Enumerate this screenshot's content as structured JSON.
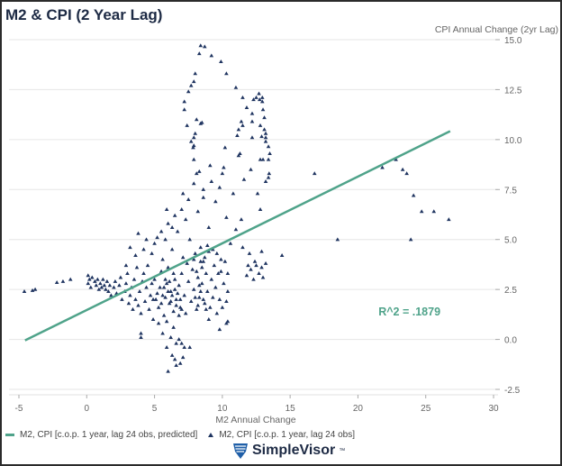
{
  "header": {
    "title": "M2 & CPI (2 Year Lag)"
  },
  "brand": {
    "name": "SimpleVisor",
    "tm": "™"
  },
  "colors": {
    "points": "#1f3460",
    "regression": "#4fa38a",
    "grid": "#e6e6e6"
  },
  "chart_data": {
    "type": "scatter",
    "title": "M2 & CPI (2 Year Lag)",
    "xlabel": "M2 Annual Change",
    "ylabel": "CPI Annual Change (2yr Lag)",
    "xlim": [
      -5,
      30
    ],
    "ylim": [
      -2.5,
      15
    ],
    "xticks": [
      "-5",
      "0",
      "5",
      "10",
      "15",
      "20",
      "25",
      "30"
    ],
    "yticks": [
      "-2.5",
      "0.0",
      "2.5",
      "5.0",
      "7.5",
      "10.0",
      "12.5",
      "15.0"
    ],
    "grid": "horizontal",
    "legend_position": "bottom-left",
    "annotation": "R^2 = .1879",
    "annotation_at": [
      23.8,
      1.2
    ],
    "series": [
      {
        "name": "M2, CPI [c.o.p. 1 year, lag 24 obs, predicted]",
        "type": "line",
        "points": [
          [
            -4.55,
            -0.05
          ],
          [
            26.8,
            10.42
          ]
        ]
      },
      {
        "name": "M2, CPI [c.o.p. 1 year, lag 24 obs]",
        "type": "scatter",
        "points": [
          [
            8.4,
            14.7
          ],
          [
            8.7,
            14.65
          ],
          [
            8.3,
            14.3
          ],
          [
            9.2,
            14.2
          ],
          [
            9.9,
            13.9
          ],
          [
            10.3,
            13.3
          ],
          [
            11.0,
            12.6
          ],
          [
            11.5,
            12.1
          ],
          [
            8.0,
            13.3
          ],
          [
            7.9,
            12.9
          ],
          [
            7.7,
            12.7
          ],
          [
            7.5,
            12.4
          ],
          [
            7.2,
            11.9
          ],
          [
            7.2,
            11.5
          ],
          [
            12.7,
            12.3
          ],
          [
            12.95,
            12.1
          ],
          [
            12.3,
            12.0
          ],
          [
            12.5,
            12.1
          ],
          [
            12.75,
            12.0
          ],
          [
            12.95,
            11.9
          ],
          [
            11.8,
            11.6
          ],
          [
            13.0,
            11.5
          ],
          [
            12.2,
            11.3
          ],
          [
            13.1,
            11.1
          ],
          [
            11.4,
            10.9
          ],
          [
            12.2,
            10.9
          ],
          [
            11.5,
            10.7
          ],
          [
            12.8,
            10.7
          ],
          [
            13.1,
            10.5
          ],
          [
            11.2,
            10.5
          ],
          [
            13.2,
            10.3
          ],
          [
            12.9,
            10.15
          ],
          [
            12.2,
            10.1
          ],
          [
            11.1,
            10.2
          ],
          [
            13.2,
            10.1
          ],
          [
            13.2,
            9.9
          ],
          [
            13.4,
            9.65
          ],
          [
            13.5,
            9.3
          ],
          [
            13.4,
            9.0
          ],
          [
            13.0,
            9.0
          ],
          [
            12.8,
            9.0
          ],
          [
            13.45,
            8.3
          ],
          [
            13.4,
            8.1
          ],
          [
            12.1,
            8.5
          ],
          [
            11.3,
            9.3
          ],
          [
            11.2,
            9.2
          ],
          [
            10.1,
            8.6
          ],
          [
            9.1,
            8.7
          ],
          [
            10.2,
            9.6
          ],
          [
            8.1,
            11.0
          ],
          [
            8.4,
            10.8
          ],
          [
            8.5,
            10.85
          ],
          [
            7.4,
            10.7
          ],
          [
            8.0,
            10.3
          ],
          [
            7.9,
            10.1
          ],
          [
            7.7,
            9.9
          ],
          [
            7.9,
            9.7
          ],
          [
            7.85,
            9.6
          ],
          [
            7.9,
            9.0
          ],
          [
            8.1,
            8.3
          ],
          [
            16.8,
            8.3
          ],
          [
            18.5,
            5.0
          ],
          [
            21.8,
            8.6
          ],
          [
            22.8,
            9.0
          ],
          [
            23.3,
            8.5
          ],
          [
            23.6,
            8.3
          ],
          [
            24.1,
            7.2
          ],
          [
            24.7,
            6.4
          ],
          [
            25.6,
            6.4
          ],
          [
            23.9,
            5.0
          ],
          [
            26.7,
            6.0
          ],
          [
            14.4,
            4.2
          ],
          [
            -4.6,
            2.4
          ],
          [
            -4.0,
            2.45
          ],
          [
            -3.8,
            2.5
          ],
          [
            -2.2,
            2.85
          ],
          [
            -1.75,
            2.9
          ],
          [
            -1.2,
            3.0
          ],
          [
            0.1,
            3.2
          ],
          [
            0.2,
            3.0
          ],
          [
            0.1,
            2.8
          ],
          [
            0.3,
            2.6
          ],
          [
            0.4,
            3.1
          ],
          [
            0.6,
            2.9
          ],
          [
            0.7,
            2.7
          ],
          [
            0.8,
            3.0
          ],
          [
            0.9,
            2.5
          ],
          [
            1.0,
            2.8
          ],
          [
            1.1,
            2.6
          ],
          [
            1.2,
            3.0
          ],
          [
            1.3,
            2.7
          ],
          [
            1.4,
            2.5
          ],
          [
            1.5,
            2.9
          ],
          [
            1.6,
            2.4
          ],
          [
            1.7,
            2.7
          ],
          [
            1.8,
            2.2
          ],
          [
            2.0,
            2.6
          ],
          [
            2.1,
            2.9
          ],
          [
            2.2,
            2.3
          ],
          [
            2.4,
            2.7
          ],
          [
            2.5,
            3.1
          ],
          [
            2.6,
            2.0
          ],
          [
            2.8,
            2.4
          ],
          [
            2.9,
            2.8
          ],
          [
            3.0,
            3.3
          ],
          [
            3.1,
            1.8
          ],
          [
            3.2,
            2.2
          ],
          [
            3.3,
            2.6
          ],
          [
            3.4,
            1.5
          ],
          [
            3.5,
            3.0
          ],
          [
            3.6,
            2.0
          ],
          [
            3.7,
            3.6
          ],
          [
            3.8,
            1.7
          ],
          [
            3.9,
            2.4
          ],
          [
            4.0,
            1.3
          ],
          [
            4.1,
            2.9
          ],
          [
            4.2,
            3.3
          ],
          [
            4.3,
            1.9
          ],
          [
            4.4,
            2.6
          ],
          [
            4.5,
            3.7
          ],
          [
            4.6,
            1.5
          ],
          [
            4.7,
            2.2
          ],
          [
            4.8,
            4.3
          ],
          [
            4.9,
            1.0
          ],
          [
            5.0,
            3.0
          ],
          [
            5.1,
            2.0
          ],
          [
            5.2,
            5.1
          ],
          [
            5.3,
            1.6
          ],
          [
            5.4,
            2.6
          ],
          [
            5.5,
            3.4
          ],
          [
            5.6,
            4.0
          ],
          [
            5.7,
            1.2
          ],
          [
            5.8,
            2.1
          ],
          [
            5.9,
            2.8
          ],
          [
            6.0,
            3.6
          ],
          [
            6.1,
            1.8
          ],
          [
            6.2,
            2.4
          ],
          [
            6.3,
            4.5
          ],
          [
            6.4,
            1.4
          ],
          [
            6.5,
            3.0
          ],
          [
            6.6,
            2.0
          ],
          [
            6.7,
            5.4
          ],
          [
            6.8,
            2.7
          ],
          [
            6.9,
            1.6
          ],
          [
            7.0,
            3.3
          ],
          [
            7.1,
            4.1
          ],
          [
            7.2,
            2.2
          ],
          [
            7.3,
            1.3
          ],
          [
            7.4,
            3.8
          ],
          [
            7.5,
            2.9
          ],
          [
            7.6,
            5.0
          ],
          [
            7.7,
            1.9
          ],
          [
            7.8,
            3.5
          ],
          [
            7.9,
            2.5
          ],
          [
            8.0,
            4.3
          ],
          [
            8.1,
            1.5
          ],
          [
            8.2,
            3.1
          ],
          [
            8.3,
            2.1
          ],
          [
            8.4,
            4.6
          ],
          [
            8.5,
            2.8
          ],
          [
            8.6,
            3.9
          ],
          [
            8.7,
            1.8
          ],
          [
            8.8,
            3.3
          ],
          [
            8.9,
            2.4
          ],
          [
            9.0,
            4.4
          ],
          [
            9.1,
            1.6
          ],
          [
            9.2,
            3.0
          ],
          [
            9.3,
            2.1
          ],
          [
            9.4,
            3.7
          ],
          [
            9.5,
            2.6
          ],
          [
            9.6,
            1.3
          ],
          [
            9.7,
            3.3
          ],
          [
            9.8,
            2.0
          ],
          [
            9.9,
            4.0
          ],
          [
            10.0,
            1.6
          ],
          [
            10.1,
            2.8
          ],
          [
            10.3,
            1.9
          ],
          [
            10.4,
            2.4
          ],
          [
            5.0,
            4.8
          ],
          [
            5.5,
            5.4
          ],
          [
            6.0,
            5.8
          ],
          [
            6.5,
            6.2
          ],
          [
            7.0,
            6.5
          ],
          [
            7.5,
            7.0
          ],
          [
            7.3,
            6.0
          ],
          [
            8.2,
            6.4
          ],
          [
            8.6,
            7.1
          ],
          [
            9.0,
            5.6
          ],
          [
            9.5,
            6.9
          ],
          [
            9.8,
            7.6
          ],
          [
            10.3,
            6.1
          ],
          [
            7.9,
            7.8
          ],
          [
            8.3,
            8.4
          ],
          [
            8.6,
            7.5
          ],
          [
            5.8,
            5.0
          ],
          [
            6.3,
            5.6
          ],
          [
            4.4,
            5.0
          ],
          [
            3.8,
            5.3
          ],
          [
            4.2,
            4.5
          ],
          [
            3.6,
            4.2
          ],
          [
            3.2,
            4.6
          ],
          [
            2.9,
            3.7
          ],
          [
            5.9,
            6.5
          ],
          [
            7.1,
            7.3
          ],
          [
            9.2,
            7.9
          ],
          [
            10.0,
            8.3
          ],
          [
            10.6,
            4.8
          ],
          [
            11.0,
            5.5
          ],
          [
            11.4,
            6.0
          ],
          [
            10.8,
            7.3
          ],
          [
            11.6,
            8.0
          ],
          [
            12.6,
            7.3
          ],
          [
            13.2,
            7.9
          ],
          [
            12.8,
            6.5
          ],
          [
            12.9,
            4.4
          ],
          [
            12.0,
            4.3
          ],
          [
            11.5,
            4.6
          ],
          [
            11.8,
            3.2
          ],
          [
            12.1,
            3.5
          ],
          [
            12.3,
            3.0
          ],
          [
            12.5,
            3.7
          ],
          [
            12.7,
            3.3
          ],
          [
            12.9,
            3.6
          ],
          [
            13.0,
            3.1
          ],
          [
            13.2,
            3.8
          ],
          [
            12.4,
            3.9
          ],
          [
            11.9,
            3.7
          ],
          [
            5.3,
            0.8
          ],
          [
            5.6,
            0.3
          ],
          [
            5.9,
            0.9
          ],
          [
            6.2,
            0.1
          ],
          [
            6.4,
            0.6
          ],
          [
            6.6,
            -0.2
          ],
          [
            6.8,
            0.0
          ],
          [
            7.0,
            -0.2
          ],
          [
            7.2,
            -0.4
          ],
          [
            7.6,
            -0.4
          ],
          [
            6.3,
            -0.8
          ],
          [
            6.5,
            -1.0
          ],
          [
            6.6,
            -1.3
          ],
          [
            6.9,
            -1.2
          ],
          [
            6.0,
            -1.6
          ],
          [
            7.1,
            -0.9
          ],
          [
            5.9,
            -0.4
          ],
          [
            4.0,
            0.3
          ],
          [
            4.0,
            0.1
          ],
          [
            10.3,
            0.8
          ],
          [
            10.4,
            0.9
          ],
          [
            9.8,
            0.5
          ],
          [
            9.0,
            1.0
          ],
          [
            5.6,
            2.2
          ],
          [
            5.7,
            2.6
          ],
          [
            5.8,
            3.0
          ],
          [
            6.0,
            2.4
          ],
          [
            6.1,
            2.9
          ],
          [
            6.2,
            1.9
          ],
          [
            6.3,
            2.2
          ],
          [
            6.5,
            2.5
          ],
          [
            6.6,
            1.7
          ],
          [
            6.7,
            2.3
          ],
          [
            6.9,
            2.0
          ],
          [
            7.0,
            1.5
          ],
          [
            6.8,
            1.2
          ],
          [
            6.4,
            3.3
          ],
          [
            5.5,
            1.8
          ],
          [
            5.2,
            2.3
          ],
          [
            4.9,
            2.0
          ],
          [
            4.8,
            2.8
          ],
          [
            8.0,
            2.1
          ],
          [
            8.2,
            1.7
          ],
          [
            8.4,
            2.4
          ],
          [
            8.6,
            2.0
          ],
          [
            8.3,
            2.7
          ],
          [
            8.8,
            1.5
          ],
          [
            8.1,
            3.4
          ],
          [
            8.5,
            3.6
          ],
          [
            8.7,
            4.1
          ],
          [
            8.4,
            3.9
          ],
          [
            7.9,
            4.0
          ],
          [
            8.9,
            4.7
          ],
          [
            9.3,
            4.5
          ],
          [
            9.6,
            4.3
          ],
          [
            9.9,
            3.4
          ],
          [
            10.2,
            3.9
          ],
          [
            10.4,
            3.3
          ]
        ]
      }
    ]
  }
}
